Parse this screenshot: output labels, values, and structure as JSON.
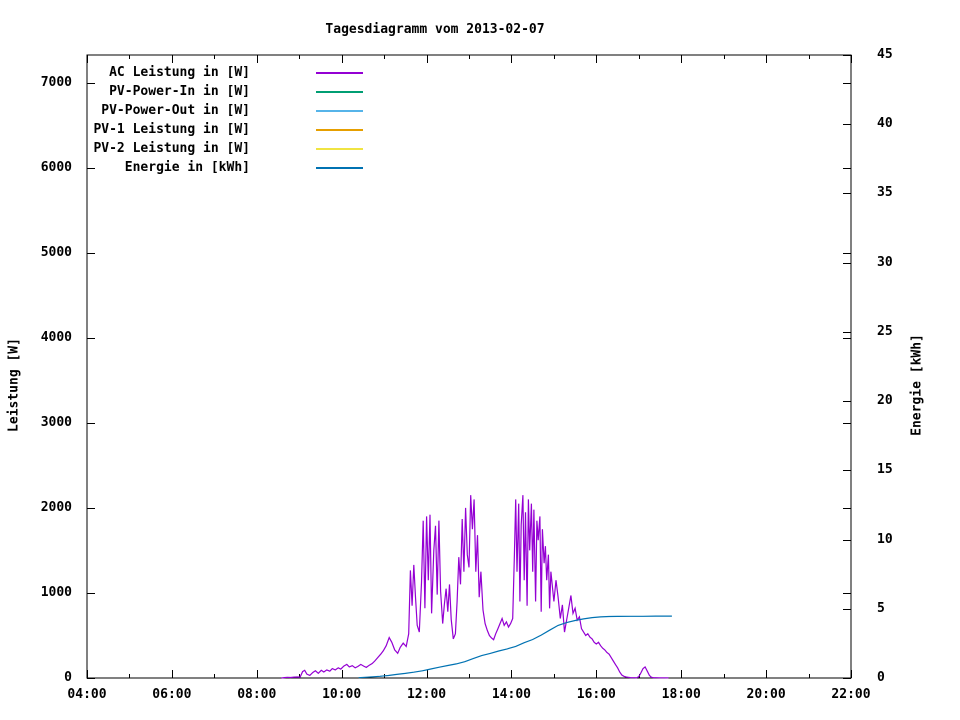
{
  "chart_data": {
    "type": "line",
    "title": "Tagesdiagramm vom 2013-02-07",
    "grid": false,
    "legend_position": "top-left-inside",
    "axes": {
      "x": {
        "min": 4,
        "max": 22,
        "major_hours": [
          4,
          6,
          8,
          10,
          12,
          14,
          16,
          18,
          20,
          22
        ],
        "major_labels": [
          "04:00",
          "06:00",
          "08:00",
          "10:00",
          "12:00",
          "14:00",
          "16:00",
          "18:00",
          "20:00",
          "22:00"
        ],
        "minor_hours": [
          5,
          7,
          9,
          11,
          13,
          15,
          17,
          19,
          21
        ]
      },
      "y_left": {
        "label": "Leistung [W]",
        "min": 0,
        "max": 7325,
        "ticks": [
          0,
          1000,
          2000,
          3000,
          4000,
          5000,
          6000,
          7000
        ],
        "tick_labels": [
          "0",
          "1000",
          "2000",
          "3000",
          "4000",
          "5000",
          "6000",
          "7000"
        ]
      },
      "y_right": {
        "label": "Energie [kWh]",
        "min": 0,
        "max": 45,
        "ticks": [
          0,
          5,
          10,
          15,
          20,
          25,
          30,
          35,
          40,
          45
        ],
        "tick_labels": [
          "0",
          "5",
          "10",
          "15",
          "20",
          "25",
          "30",
          "35",
          "40",
          "45"
        ]
      }
    },
    "series": [
      {
        "name": "AC Leistung in [W]",
        "color": "#9400d3",
        "axis": "left",
        "data": [
          [
            8.58,
            0
          ],
          [
            8.65,
            5
          ],
          [
            8.72,
            8
          ],
          [
            8.8,
            6
          ],
          [
            8.88,
            10
          ],
          [
            8.95,
            12
          ],
          [
            9.02,
            10
          ],
          [
            9.08,
            75
          ],
          [
            9.13,
            90
          ],
          [
            9.18,
            45
          ],
          [
            9.25,
            30
          ],
          [
            9.32,
            65
          ],
          [
            9.38,
            85
          ],
          [
            9.45,
            55
          ],
          [
            9.52,
            90
          ],
          [
            9.58,
            70
          ],
          [
            9.65,
            95
          ],
          [
            9.72,
            80
          ],
          [
            9.78,
            110
          ],
          [
            9.85,
            95
          ],
          [
            9.92,
            120
          ],
          [
            9.98,
            105
          ],
          [
            10.05,
            140
          ],
          [
            10.12,
            160
          ],
          [
            10.18,
            130
          ],
          [
            10.25,
            145
          ],
          [
            10.32,
            120
          ],
          [
            10.38,
            135
          ],
          [
            10.45,
            160
          ],
          [
            10.52,
            140
          ],
          [
            10.58,
            125
          ],
          [
            10.65,
            150
          ],
          [
            10.72,
            170
          ],
          [
            10.78,
            200
          ],
          [
            10.85,
            240
          ],
          [
            10.92,
            280
          ],
          [
            10.98,
            320
          ],
          [
            11.05,
            380
          ],
          [
            11.12,
            475
          ],
          [
            11.18,
            420
          ],
          [
            11.25,
            330
          ],
          [
            11.32,
            290
          ],
          [
            11.38,
            360
          ],
          [
            11.45,
            410
          ],
          [
            11.52,
            370
          ],
          [
            11.58,
            520
          ],
          [
            11.62,
            1265
          ],
          [
            11.66,
            850
          ],
          [
            11.7,
            1330
          ],
          [
            11.74,
            950
          ],
          [
            11.78,
            620
          ],
          [
            11.83,
            540
          ],
          [
            11.88,
            1120
          ],
          [
            11.92,
            1850
          ],
          [
            11.96,
            820
          ],
          [
            12.0,
            1900
          ],
          [
            12.04,
            1150
          ],
          [
            12.08,
            1920
          ],
          [
            12.12,
            760
          ],
          [
            12.17,
            1500
          ],
          [
            12.21,
            1790
          ],
          [
            12.25,
            980
          ],
          [
            12.29,
            1850
          ],
          [
            12.33,
            1020
          ],
          [
            12.38,
            640
          ],
          [
            12.42,
            870
          ],
          [
            12.46,
            1050
          ],
          [
            12.5,
            780
          ],
          [
            12.54,
            1100
          ],
          [
            12.58,
            690
          ],
          [
            12.63,
            460
          ],
          [
            12.68,
            520
          ],
          [
            12.72,
            900
          ],
          [
            12.76,
            1420
          ],
          [
            12.8,
            1100
          ],
          [
            12.84,
            1870
          ],
          [
            12.88,
            1250
          ],
          [
            12.92,
            2000
          ],
          [
            12.96,
            1450
          ],
          [
            13.0,
            1300
          ],
          [
            13.04,
            2150
          ],
          [
            13.08,
            1750
          ],
          [
            13.12,
            2100
          ],
          [
            13.16,
            1250
          ],
          [
            13.2,
            1680
          ],
          [
            13.24,
            950
          ],
          [
            13.28,
            1250
          ],
          [
            13.33,
            800
          ],
          [
            13.38,
            640
          ],
          [
            13.43,
            560
          ],
          [
            13.48,
            500
          ],
          [
            13.53,
            470
          ],
          [
            13.58,
            450
          ],
          [
            13.63,
            520
          ],
          [
            13.68,
            580
          ],
          [
            13.73,
            640
          ],
          [
            13.78,
            700
          ],
          [
            13.83,
            620
          ],
          [
            13.88,
            660
          ],
          [
            13.93,
            600
          ],
          [
            13.98,
            640
          ],
          [
            14.03,
            700
          ],
          [
            14.07,
            1450
          ],
          [
            14.1,
            2100
          ],
          [
            14.13,
            1250
          ],
          [
            14.17,
            2050
          ],
          [
            14.2,
            900
          ],
          [
            14.23,
            1800
          ],
          [
            14.27,
            2150
          ],
          [
            14.3,
            1150
          ],
          [
            14.33,
            1950
          ],
          [
            14.37,
            850
          ],
          [
            14.4,
            2100
          ],
          [
            14.43,
            1500
          ],
          [
            14.47,
            2050
          ],
          [
            14.5,
            1250
          ],
          [
            14.53,
            1980
          ],
          [
            14.57,
            900
          ],
          [
            14.6,
            1850
          ],
          [
            14.63,
            1620
          ],
          [
            14.67,
            1900
          ],
          [
            14.7,
            780
          ],
          [
            14.73,
            1750
          ],
          [
            14.77,
            1350
          ],
          [
            14.8,
            1550
          ],
          [
            14.83,
            1150
          ],
          [
            14.87,
            1450
          ],
          [
            14.9,
            820
          ],
          [
            14.93,
            1250
          ],
          [
            14.97,
            1050
          ],
          [
            15.0,
            900
          ],
          [
            15.05,
            1150
          ],
          [
            15.1,
            950
          ],
          [
            15.15,
            700
          ],
          [
            15.2,
            860
          ],
          [
            15.25,
            540
          ],
          [
            15.3,
            680
          ],
          [
            15.35,
            820
          ],
          [
            15.4,
            970
          ],
          [
            15.45,
            760
          ],
          [
            15.5,
            820
          ],
          [
            15.55,
            680
          ],
          [
            15.6,
            720
          ],
          [
            15.65,
            580
          ],
          [
            15.7,
            540
          ],
          [
            15.75,
            500
          ],
          [
            15.8,
            520
          ],
          [
            15.85,
            480
          ],
          [
            15.9,
            460
          ],
          [
            15.95,
            420
          ],
          [
            16.0,
            400
          ],
          [
            16.05,
            420
          ],
          [
            16.1,
            380
          ],
          [
            16.15,
            350
          ],
          [
            16.2,
            330
          ],
          [
            16.25,
            300
          ],
          [
            16.3,
            280
          ],
          [
            16.35,
            240
          ],
          [
            16.4,
            200
          ],
          [
            16.45,
            160
          ],
          [
            16.5,
            120
          ],
          [
            16.55,
            70
          ],
          [
            16.6,
            35
          ],
          [
            16.65,
            20
          ],
          [
            16.7,
            12
          ],
          [
            16.75,
            8
          ],
          [
            16.8,
            5
          ],
          [
            16.85,
            4
          ],
          [
            16.9,
            3
          ],
          [
            16.95,
            2
          ],
          [
            17.0,
            15
          ],
          [
            17.05,
            60
          ],
          [
            17.1,
            110
          ],
          [
            17.15,
            130
          ],
          [
            17.2,
            80
          ],
          [
            17.25,
            30
          ],
          [
            17.3,
            8
          ],
          [
            17.35,
            4
          ],
          [
            17.4,
            3
          ],
          [
            17.5,
            2
          ],
          [
            17.6,
            2
          ],
          [
            17.7,
            1
          ]
        ]
      },
      {
        "name": "PV-Power-In in [W]",
        "color": "#009e73",
        "axis": "left",
        "data": []
      },
      {
        "name": "PV-Power-Out in [W]",
        "color": "#56b4e9",
        "axis": "left",
        "data": []
      },
      {
        "name": "PV-1 Leistung in [W]",
        "color": "#e69f00",
        "axis": "left",
        "data": []
      },
      {
        "name": "PV-2 Leistung in [W]",
        "color": "#f0e442",
        "axis": "left",
        "data": []
      },
      {
        "name": "Energie in [kWh]",
        "color": "#0072b2",
        "axis": "right",
        "data": [
          [
            10.4,
            0.02
          ],
          [
            10.6,
            0.06
          ],
          [
            10.9,
            0.12
          ],
          [
            11.1,
            0.18
          ],
          [
            11.3,
            0.26
          ],
          [
            11.5,
            0.33
          ],
          [
            11.7,
            0.42
          ],
          [
            11.9,
            0.52
          ],
          [
            12.1,
            0.65
          ],
          [
            12.3,
            0.78
          ],
          [
            12.5,
            0.9
          ],
          [
            12.7,
            1.02
          ],
          [
            12.9,
            1.18
          ],
          [
            13.1,
            1.4
          ],
          [
            13.3,
            1.62
          ],
          [
            13.5,
            1.78
          ],
          [
            13.7,
            1.95
          ],
          [
            13.9,
            2.1
          ],
          [
            14.1,
            2.28
          ],
          [
            14.3,
            2.55
          ],
          [
            14.5,
            2.78
          ],
          [
            14.7,
            3.1
          ],
          [
            14.9,
            3.45
          ],
          [
            15.1,
            3.8
          ],
          [
            15.3,
            4.0
          ],
          [
            15.5,
            4.15
          ],
          [
            15.7,
            4.27
          ],
          [
            15.9,
            4.36
          ],
          [
            16.1,
            4.41
          ],
          [
            16.3,
            4.44
          ],
          [
            16.5,
            4.45
          ],
          [
            16.8,
            4.46
          ],
          [
            17.1,
            4.46
          ],
          [
            17.4,
            4.47
          ],
          [
            17.78,
            4.47
          ]
        ]
      }
    ]
  },
  "colors": {
    "foreground": "#000000",
    "background": "#ffffff",
    "ac": "#9400d3",
    "pv_power_in": "#009e73",
    "pv_power_out": "#56b4e9",
    "pv1": "#e69f00",
    "pv2": "#f0e442",
    "energie": "#0072b2"
  }
}
